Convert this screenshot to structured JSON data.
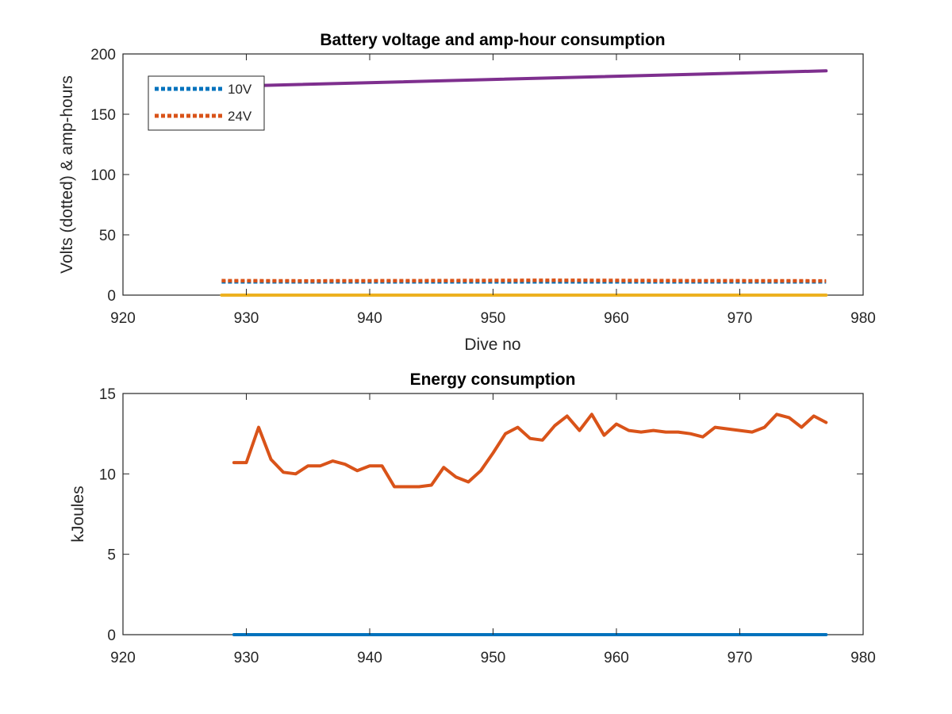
{
  "chart_data": [
    {
      "type": "line",
      "title": "Battery voltage and amp-hour consumption",
      "xlabel": "Dive no",
      "ylabel": "Volts (dotted) & amp-hours",
      "xlim": [
        920,
        980
      ],
      "ylim": [
        0,
        200
      ],
      "xticks": [
        "920",
        "930",
        "940",
        "950",
        "960",
        "970",
        "980"
      ],
      "yticks": [
        "0",
        "50",
        "100",
        "150",
        "200"
      ],
      "legend": {
        "placement": "top-left",
        "entries": [
          "10V",
          "24V"
        ]
      },
      "series": [
        {
          "name": "10V",
          "color": "#0072BD",
          "style": "dotted",
          "x": [
            928,
            977
          ],
          "y": [
            11,
            11
          ]
        },
        {
          "name": "24V",
          "color": "#D95319",
          "style": "dotted",
          "x": [
            928,
            935,
            945,
            955,
            965,
            977
          ],
          "y": [
            12,
            11.8,
            12,
            12.3,
            12,
            11.8
          ]
        },
        {
          "color": "#EDB120",
          "style": "solid",
          "x": [
            928,
            977
          ],
          "y": [
            0,
            0
          ]
        },
        {
          "color": "#7E2F8E",
          "style": "solid",
          "x": [
            928,
            977
          ],
          "y": [
            173,
            186
          ]
        }
      ]
    },
    {
      "type": "line",
      "title": "Energy consumption",
      "xlabel": "",
      "ylabel": "kJoules",
      "xlim": [
        920,
        980
      ],
      "ylim": [
        0,
        15
      ],
      "xticks": [
        "920",
        "930",
        "940",
        "950",
        "960",
        "970",
        "980"
      ],
      "yticks": [
        "0",
        "5",
        "10",
        "15"
      ],
      "series": [
        {
          "color": "#0072BD",
          "style": "solid",
          "x": [
            929,
            977
          ],
          "y": [
            0,
            0
          ]
        },
        {
          "color": "#D95319",
          "style": "solid",
          "x": [
            929,
            930,
            931,
            932,
            933,
            934,
            935,
            936,
            937,
            938,
            939,
            940,
            941,
            942,
            943,
            944,
            945,
            946,
            947,
            948,
            949,
            950,
            951,
            952,
            953,
            954,
            955,
            956,
            957,
            958,
            959,
            960,
            961,
            962,
            963,
            964,
            965,
            966,
            967,
            968,
            969,
            970,
            971,
            972,
            973,
            974,
            975,
            976,
            977
          ],
          "y": [
            10.7,
            10.7,
            12.9,
            10.9,
            10.1,
            10.0,
            10.5,
            10.5,
            10.8,
            10.6,
            10.2,
            10.5,
            10.5,
            9.2,
            9.2,
            9.2,
            9.3,
            10.4,
            9.8,
            9.5,
            10.2,
            11.3,
            12.5,
            12.9,
            12.2,
            12.1,
            13.0,
            13.6,
            12.7,
            13.7,
            12.4,
            13.1,
            12.7,
            12.6,
            12.7,
            12.6,
            12.6,
            12.5,
            12.3,
            12.9,
            12.8,
            12.7,
            12.6,
            12.9,
            13.7,
            13.5,
            12.9,
            13.6,
            13.2
          ]
        }
      ]
    }
  ]
}
